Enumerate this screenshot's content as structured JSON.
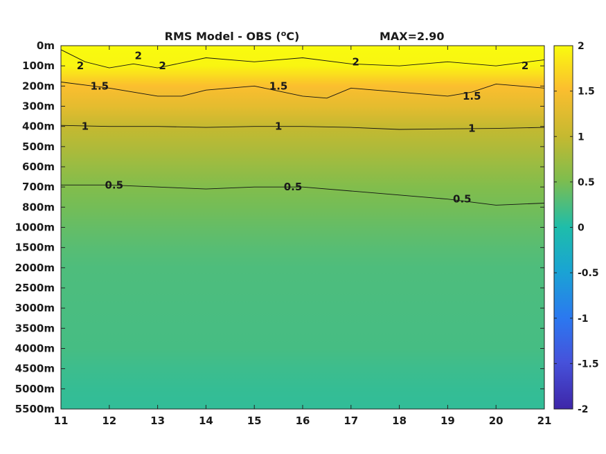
{
  "chart_data": {
    "type": "heatmap",
    "title": "RMS Model - OBS (°C)",
    "title_parts": {
      "prefix": "RMS Model - OBS (",
      "superscript": "o",
      "suffix": "C)"
    },
    "annotation": "MAX=2.90",
    "xlabel": "",
    "ylabel": "",
    "x_ticks": [
      11,
      12,
      13,
      14,
      15,
      16,
      17,
      18,
      19,
      20,
      21
    ],
    "xlim": [
      11,
      21
    ],
    "y_tick_labels": [
      "0m",
      "100m",
      "200m",
      "300m",
      "400m",
      "500m",
      "600m",
      "700m",
      "800m",
      "1000m",
      "1500m",
      "2000m",
      "2500m",
      "3000m",
      "3500m",
      "4000m",
      "4500m",
      "5000m",
      "5500m"
    ],
    "colorbar": {
      "ticks": [
        2,
        1.5,
        1,
        0.5,
        0,
        -0.5,
        -1,
        -1.5,
        -2
      ],
      "tick_labels": [
        "2",
        "1.5",
        "1",
        "0.5",
        "0",
        "-0.5",
        "-1",
        "-1.5",
        "-2"
      ],
      "range": [
        -2,
        2
      ],
      "colormap": "parula"
    },
    "rows": [
      {
        "depth": "0m",
        "value": 2.1
      },
      {
        "depth": "100m",
        "value": 1.95
      },
      {
        "depth": "200m",
        "value": 1.5
      },
      {
        "depth": "300m",
        "value": 1.3
      },
      {
        "depth": "400m",
        "value": 1.0
      },
      {
        "depth": "500m",
        "value": 0.85
      },
      {
        "depth": "600m",
        "value": 0.68
      },
      {
        "depth": "700m",
        "value": 0.53
      },
      {
        "depth": "800m",
        "value": 0.45
      },
      {
        "depth": "1000m",
        "value": 0.37
      },
      {
        "depth": "1500m",
        "value": 0.3
      },
      {
        "depth": "2000m",
        "value": 0.25
      },
      {
        "depth": "2500m",
        "value": 0.24
      },
      {
        "depth": "3000m",
        "value": 0.23
      },
      {
        "depth": "3500m",
        "value": 0.22
      },
      {
        "depth": "4000m",
        "value": 0.21
      },
      {
        "depth": "4500m",
        "value": 0.16
      },
      {
        "depth": "5000m",
        "value": 0.12
      },
      {
        "depth": "5500m",
        "value": 0.1
      }
    ],
    "contours": [
      {
        "level": 2,
        "label": "2",
        "label_positions": [
          [
            11.4,
            "100m"
          ],
          [
            12.6,
            "50m"
          ],
          [
            13.1,
            "100m"
          ],
          [
            17.1,
            "80m"
          ],
          [
            20.6,
            "100m"
          ]
        ],
        "depth_by_x": [
          [
            11,
            20
          ],
          [
            11.5,
            80
          ],
          [
            12,
            110
          ],
          [
            12.5,
            90
          ],
          [
            13,
            110
          ],
          [
            14,
            60
          ],
          [
            15,
            80
          ],
          [
            16,
            60
          ],
          [
            17,
            90
          ],
          [
            18,
            100
          ],
          [
            19,
            80
          ],
          [
            20,
            100
          ],
          [
            21,
            70
          ]
        ]
      },
      {
        "level": 1.5,
        "label": "1.5",
        "label_positions": [
          [
            11.8,
            "200m"
          ],
          [
            15.5,
            "200m"
          ],
          [
            19.5,
            "250m"
          ]
        ],
        "depth_by_x": [
          [
            11,
            180
          ],
          [
            12,
            210
          ],
          [
            13,
            250
          ],
          [
            13.5,
            250
          ],
          [
            14,
            220
          ],
          [
            15,
            200
          ],
          [
            16,
            250
          ],
          [
            16.5,
            260
          ],
          [
            17,
            210
          ],
          [
            18,
            230
          ],
          [
            19,
            250
          ],
          [
            19.5,
            230
          ],
          [
            20,
            190
          ],
          [
            21,
            210
          ]
        ]
      },
      {
        "level": 1,
        "label": "1",
        "label_positions": [
          [
            11.5,
            "400m"
          ],
          [
            15.5,
            "400m"
          ],
          [
            19.5,
            "410m"
          ]
        ],
        "depth_by_x": [
          [
            11,
            395
          ],
          [
            12,
            400
          ],
          [
            13,
            400
          ],
          [
            14,
            405
          ],
          [
            15,
            400
          ],
          [
            16,
            400
          ],
          [
            17,
            405
          ],
          [
            18,
            415
          ],
          [
            19,
            412
          ],
          [
            20,
            410
          ],
          [
            21,
            405
          ]
        ]
      },
      {
        "level": 0.5,
        "label": "0.5",
        "label_positions": [
          [
            12.1,
            "690m"
          ],
          [
            15.8,
            "700m"
          ],
          [
            19.3,
            "760m"
          ]
        ],
        "depth_by_x": [
          [
            11,
            690
          ],
          [
            12,
            690
          ],
          [
            13,
            700
          ],
          [
            14,
            710
          ],
          [
            15,
            700
          ],
          [
            16,
            700
          ],
          [
            17,
            720
          ],
          [
            18,
            740
          ],
          [
            19,
            760
          ],
          [
            20,
            790
          ],
          [
            21,
            780
          ]
        ]
      }
    ]
  }
}
